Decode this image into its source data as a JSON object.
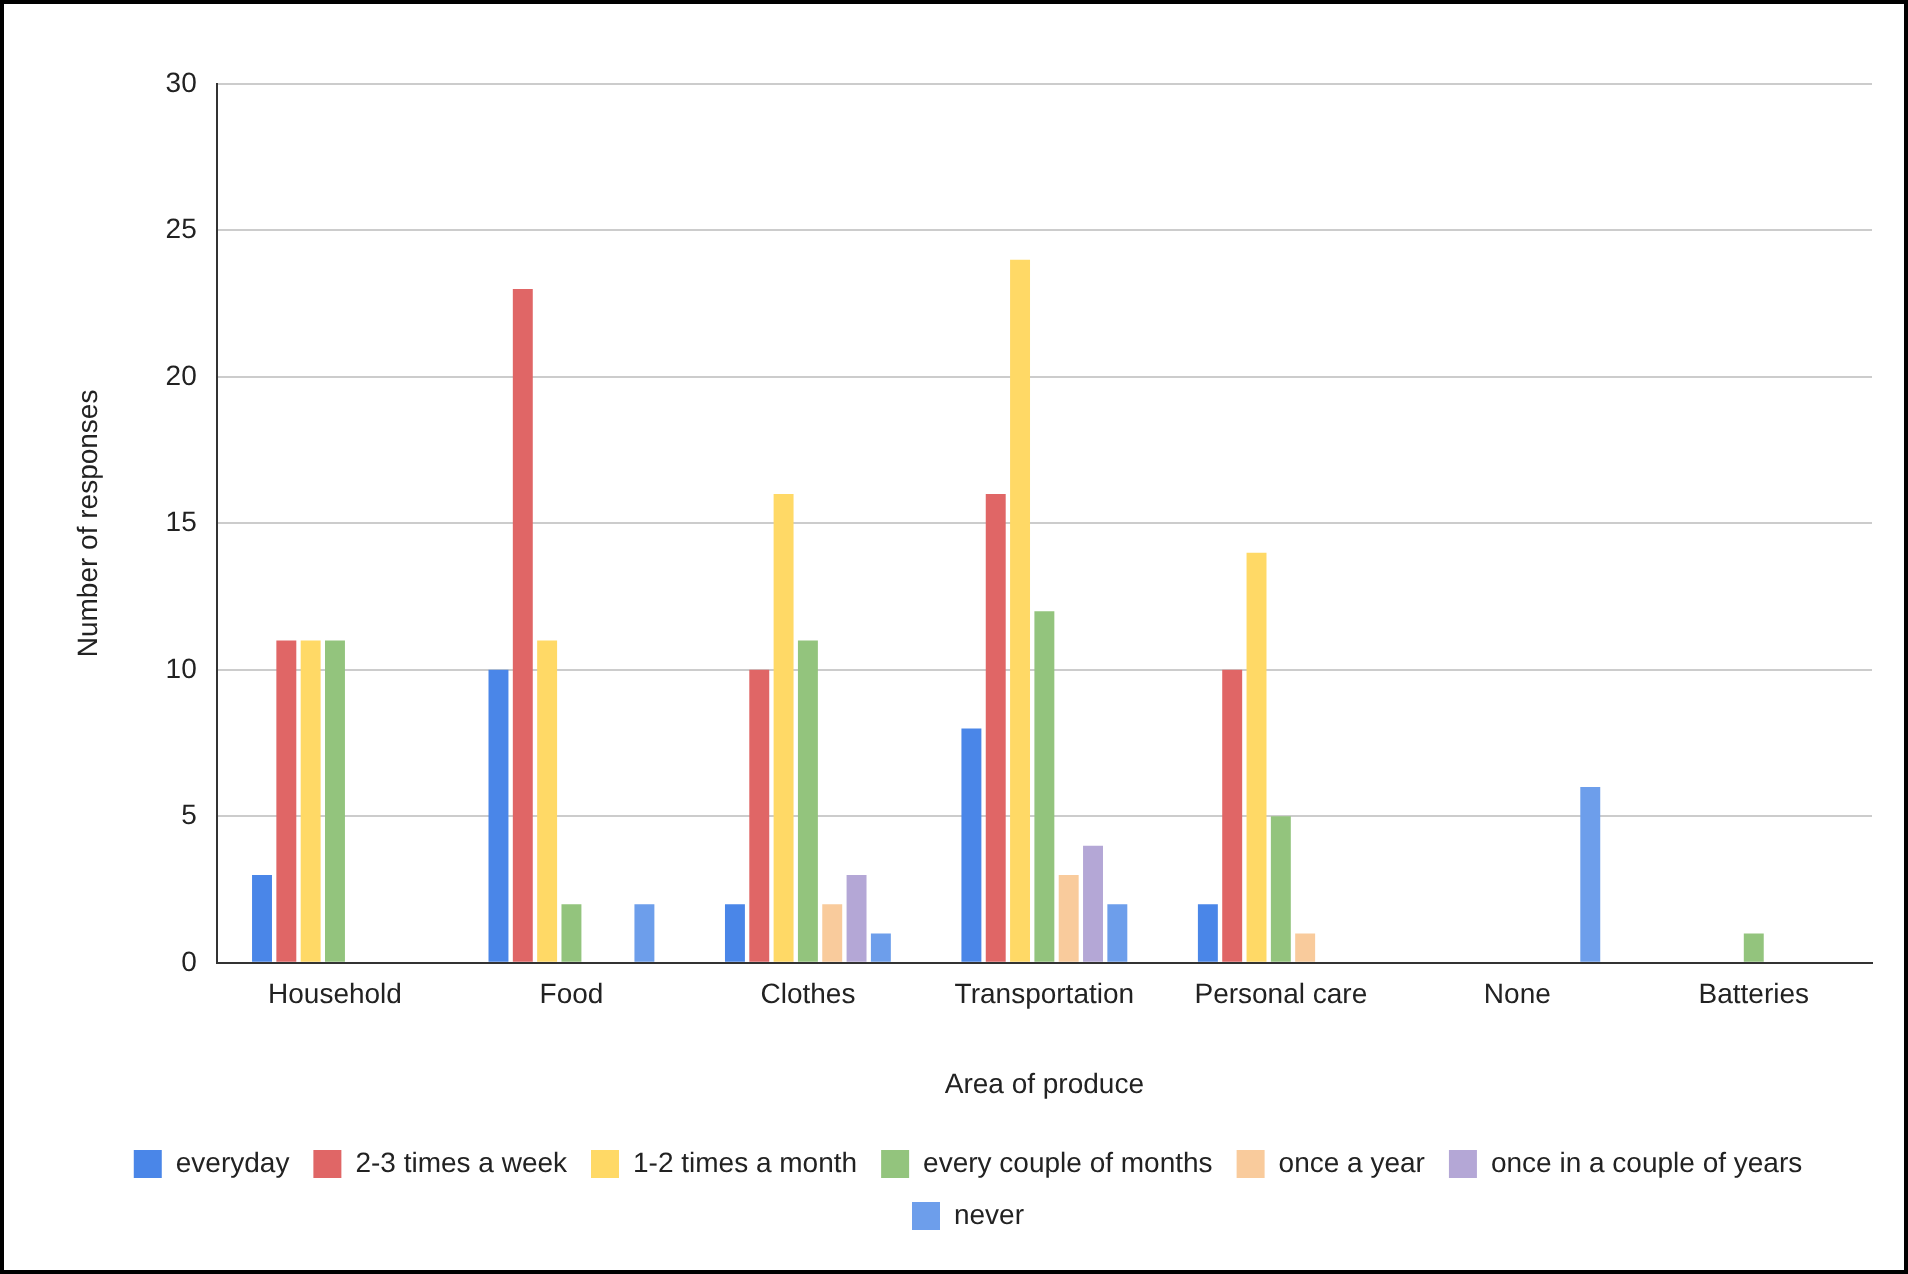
{
  "chart_data": {
    "type": "bar",
    "xlabel": "Area of produce",
    "ylabel": "Number of responses",
    "categories": [
      "Household",
      "Food",
      "Clothes",
      "Transportation",
      "Personal care",
      "None",
      "Batteries"
    ],
    "series": [
      {
        "name": "everyday",
        "color": "#4a86e8",
        "values": [
          3,
          10,
          2,
          8,
          2,
          0,
          0
        ]
      },
      {
        "name": "2-3 times a week",
        "color": "#e06666",
        "values": [
          11,
          23,
          10,
          16,
          10,
          0,
          0
        ]
      },
      {
        "name": "1-2 times a month",
        "color": "#ffd966",
        "values": [
          11,
          11,
          16,
          24,
          14,
          0,
          0
        ]
      },
      {
        "name": "every couple of months",
        "color": "#93c47d",
        "values": [
          11,
          2,
          11,
          12,
          5,
          0,
          1
        ]
      },
      {
        "name": "once a year",
        "color": "#f9cb9c",
        "values": [
          0,
          0,
          2,
          3,
          1,
          0,
          0
        ]
      },
      {
        "name": "once in a couple of years",
        "color": "#b4a7d6",
        "values": [
          0,
          0,
          3,
          4,
          0,
          0,
          0
        ]
      },
      {
        "name": "never",
        "color": "#6d9eeb",
        "values": [
          0,
          2,
          1,
          2,
          0,
          6,
          0
        ]
      }
    ],
    "ylim": [
      0,
      30
    ],
    "yticks": [
      0,
      5,
      10,
      15,
      20,
      25,
      30
    ],
    "grid": "y",
    "legend": "bottom"
  }
}
